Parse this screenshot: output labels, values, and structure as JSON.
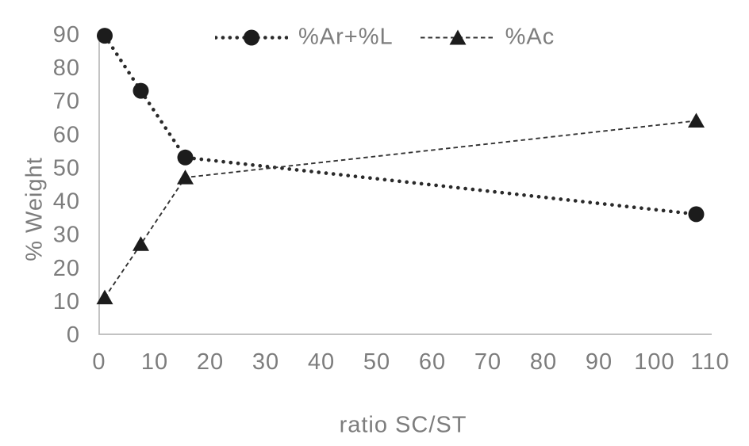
{
  "chart_data": {
    "type": "scatter",
    "title": "",
    "xlabel": "ratio SC/ST",
    "ylabel": "% Weight",
    "xlim": [
      0,
      110
    ],
    "ylim": [
      0,
      90
    ],
    "xticks": [
      0,
      10,
      20,
      30,
      40,
      50,
      60,
      70,
      80,
      90,
      100,
      110
    ],
    "yticks": [
      0,
      10,
      20,
      30,
      40,
      50,
      60,
      70,
      80,
      90
    ],
    "grid": false,
    "legend_position": "top-center",
    "x": [
      1,
      7.5,
      15.5,
      107.5
    ],
    "series": [
      {
        "name": "%Ar+%L",
        "marker": "circle",
        "line_style": "round-dot",
        "values": [
          89.5,
          73,
          53,
          36
        ]
      },
      {
        "name": "%Ac",
        "marker": "triangle",
        "line_style": "dash",
        "values": [
          11,
          27,
          47,
          64
        ]
      }
    ],
    "colors": {
      "series_line": "#2a2a2a",
      "marker_fill": "#1c1c1c",
      "axis_line": "#b9b9b9",
      "tick_label": "#7d7d7d"
    }
  }
}
